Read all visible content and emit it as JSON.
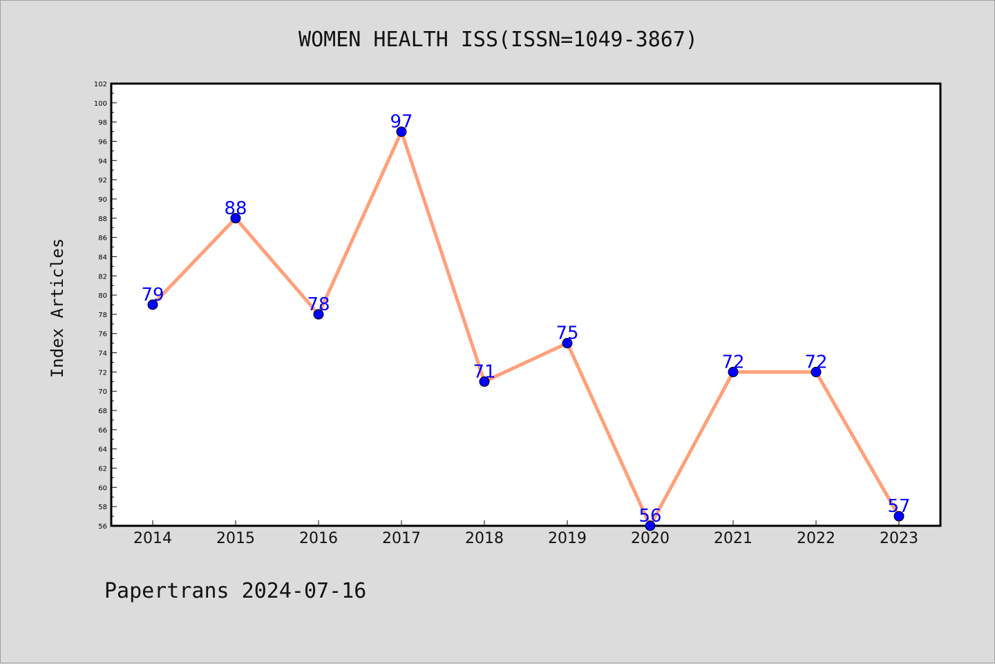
{
  "chart_data": {
    "type": "line",
    "title": "WOMEN HEALTH ISS(ISSN=1049-3867)",
    "xlabel": "",
    "ylabel": "Index Articles",
    "categories": [
      "2014",
      "2015",
      "2016",
      "2017",
      "2018",
      "2019",
      "2020",
      "2021",
      "2022",
      "2023"
    ],
    "values": [
      79,
      88,
      78,
      97,
      71,
      75,
      56,
      72,
      72,
      57
    ],
    "ylim": [
      56,
      102
    ],
    "ytick_step": 2,
    "grid": false,
    "line_color": "#ffa07a",
    "marker_color": "#0000ff",
    "label_color": "#0000ff"
  },
  "footer": {
    "text": "Papertrans 2024-07-16"
  }
}
